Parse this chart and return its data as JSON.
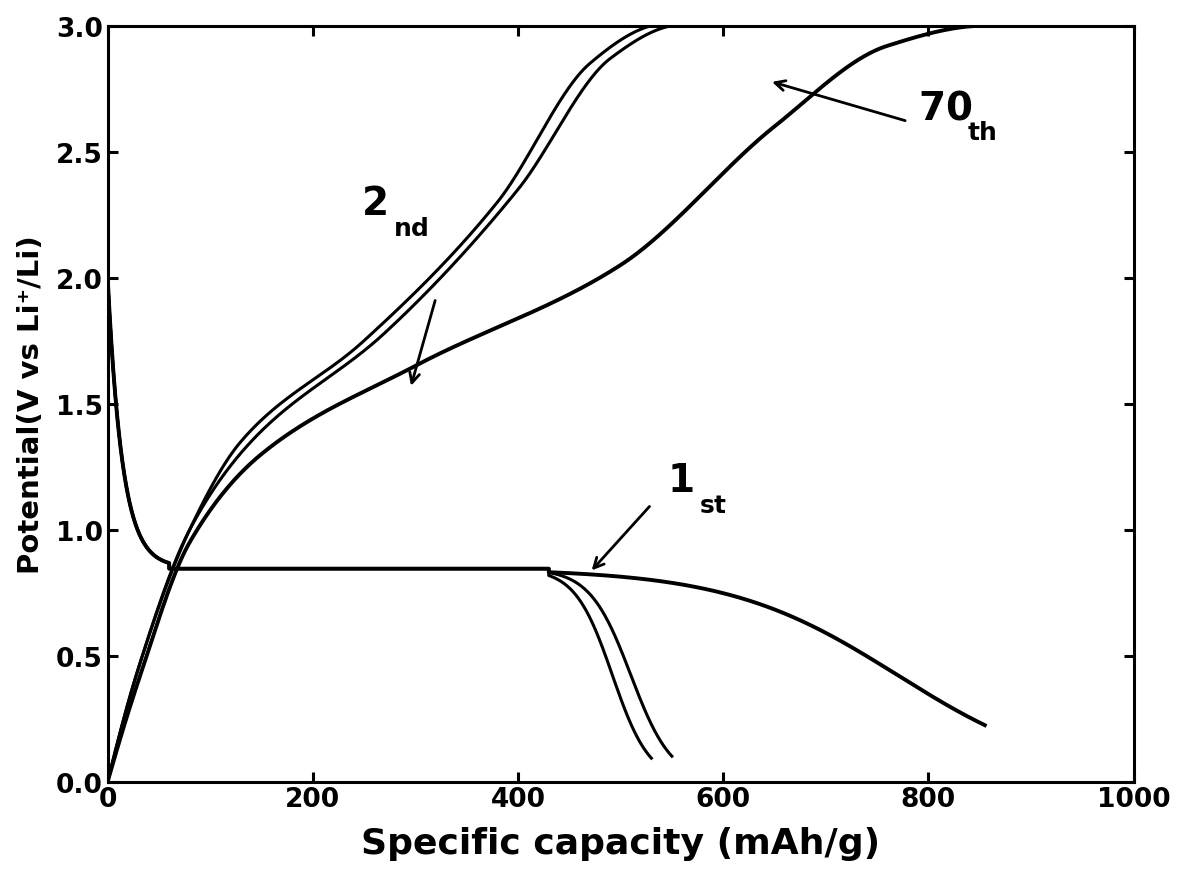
{
  "xlabel": "Specific capacity (mAh/g)",
  "ylabel": "Potential(V vs Li⁺/Li)",
  "xlim": [
    0,
    1000
  ],
  "ylim": [
    0.0,
    3.0
  ],
  "xticks": [
    0,
    200,
    400,
    600,
    800,
    1000
  ],
  "yticks": [
    0.0,
    0.5,
    1.0,
    1.5,
    2.0,
    2.5,
    3.0
  ],
  "line_color": "#000000",
  "line_width": 2.2,
  "background_color": "#ffffff"
}
